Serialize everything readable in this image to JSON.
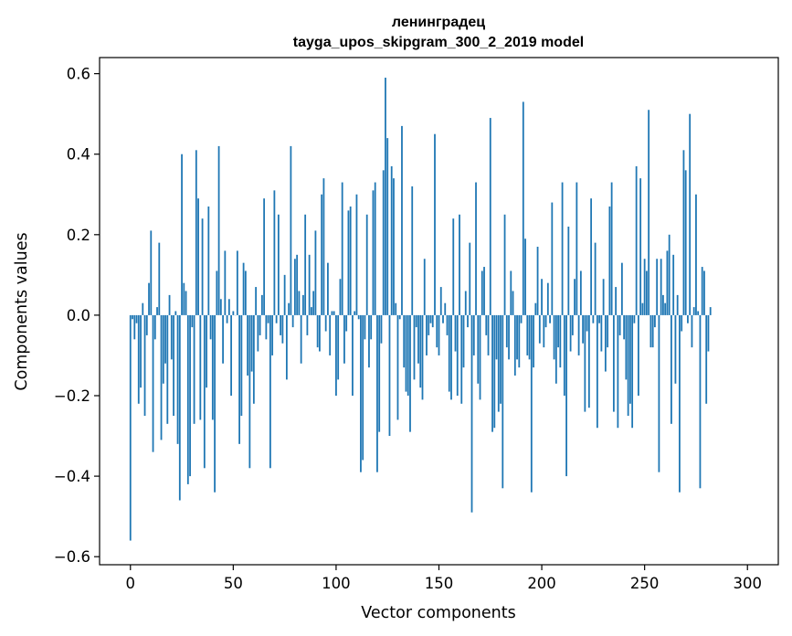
{
  "chart_data": {
    "type": "bar",
    "title": "ленинградец",
    "subtitle": "tayga_upos_skipgram_300_2_2019 model",
    "xlabel": "Vector components",
    "ylabel": "Components values",
    "xlim": [
      -15,
      315
    ],
    "ylim": [
      -0.62,
      0.64
    ],
    "xticks": [
      0,
      50,
      100,
      150,
      200,
      250,
      300
    ],
    "yticks": [
      -0.6,
      -0.4,
      -0.2,
      0.0,
      0.2,
      0.4,
      0.6
    ],
    "xtick_labels": [
      "0",
      "50",
      "100",
      "150",
      "200",
      "250",
      "300"
    ],
    "ytick_labels": [
      "−0.6",
      "−0.4",
      "−0.2",
      "0.0",
      "0.2",
      "0.4",
      "0.6"
    ],
    "bar_color": "#1f77b4",
    "grid": false,
    "values": [
      -0.56,
      -0.01,
      -0.06,
      -0.02,
      -0.22,
      -0.18,
      0.03,
      -0.25,
      -0.05,
      0.08,
      0.21,
      -0.34,
      -0.06,
      0.02,
      0.18,
      -0.31,
      -0.17,
      -0.12,
      -0.27,
      0.05,
      -0.11,
      -0.25,
      0.01,
      -0.32,
      -0.46,
      0.4,
      0.08,
      0.06,
      -0.42,
      -0.4,
      -0.03,
      -0.27,
      0.41,
      0.29,
      -0.26,
      0.24,
      -0.38,
      -0.18,
      0.27,
      -0.06,
      -0.26,
      -0.44,
      0.11,
      0.42,
      0.04,
      -0.12,
      0.16,
      -0.02,
      0.04,
      -0.2,
      0.01,
      0.0,
      0.16,
      -0.32,
      -0.25,
      0.13,
      0.11,
      -0.15,
      -0.38,
      -0.14,
      -0.22,
      0.07,
      -0.09,
      -0.05,
      0.05,
      0.29,
      -0.06,
      -0.02,
      -0.38,
      -0.1,
      0.31,
      -0.02,
      0.25,
      -0.05,
      -0.07,
      0.1,
      -0.16,
      0.03,
      0.42,
      -0.03,
      0.14,
      0.15,
      0.06,
      -0.12,
      0.05,
      0.25,
      -0.05,
      0.15,
      0.02,
      0.06,
      0.21,
      -0.08,
      -0.09,
      0.3,
      0.34,
      -0.04,
      0.13,
      -0.1,
      0.01,
      0.01,
      -0.2,
      -0.16,
      0.09,
      0.33,
      -0.12,
      -0.04,
      0.26,
      0.27,
      -0.2,
      0.01,
      0.3,
      -0.01,
      -0.39,
      -0.36,
      -0.06,
      0.25,
      -0.13,
      -0.06,
      0.31,
      0.33,
      -0.39,
      -0.29,
      -0.07,
      0.36,
      0.59,
      0.44,
      -0.3,
      0.37,
      0.34,
      0.03,
      -0.26,
      -0.01,
      0.47,
      -0.13,
      -0.19,
      -0.2,
      -0.29,
      0.32,
      -0.16,
      -0.03,
      -0.12,
      -0.18,
      -0.21,
      0.14,
      -0.1,
      -0.05,
      -0.02,
      -0.03,
      0.45,
      -0.08,
      -0.1,
      0.07,
      -0.02,
      0.03,
      -0.05,
      -0.19,
      -0.21,
      0.24,
      -0.09,
      -0.2,
      0.25,
      -0.22,
      -0.13,
      0.06,
      -0.03,
      0.18,
      -0.49,
      -0.1,
      0.33,
      -0.17,
      -0.21,
      0.11,
      0.12,
      -0.05,
      -0.1,
      0.49,
      -0.29,
      -0.28,
      -0.11,
      -0.24,
      -0.22,
      -0.43,
      0.25,
      -0.08,
      -0.11,
      0.11,
      0.06,
      -0.15,
      -0.11,
      -0.13,
      -0.02,
      0.53,
      0.19,
      -0.1,
      -0.11,
      -0.44,
      -0.13,
      0.03,
      0.17,
      -0.07,
      0.09,
      -0.08,
      -0.03,
      0.08,
      -0.02,
      0.28,
      -0.11,
      -0.17,
      -0.08,
      -0.13,
      0.33,
      -0.2,
      -0.4,
      0.22,
      -0.09,
      -0.05,
      0.09,
      0.33,
      -0.1,
      0.11,
      -0.07,
      -0.24,
      -0.04,
      -0.23,
      0.29,
      -0.02,
      0.18,
      -0.28,
      -0.02,
      -0.09,
      0.09,
      -0.14,
      -0.08,
      0.27,
      0.33,
      -0.24,
      0.07,
      -0.28,
      -0.05,
      0.13,
      -0.06,
      -0.16,
      -0.25,
      -0.22,
      -0.28,
      -0.02,
      0.37,
      -0.2,
      0.34,
      0.03,
      0.14,
      0.11,
      0.51,
      -0.08,
      -0.08,
      -0.03,
      0.14,
      -0.39,
      0.14,
      0.05,
      0.03,
      0.16,
      0.2,
      -0.27,
      0.15,
      -0.17,
      0.05,
      -0.44,
      -0.04,
      0.41,
      0.36,
      -0.02,
      0.5,
      -0.08,
      0.02,
      0.3,
      0.01,
      -0.43,
      0.12,
      0.11,
      -0.22,
      -0.09,
      0.02
    ]
  }
}
